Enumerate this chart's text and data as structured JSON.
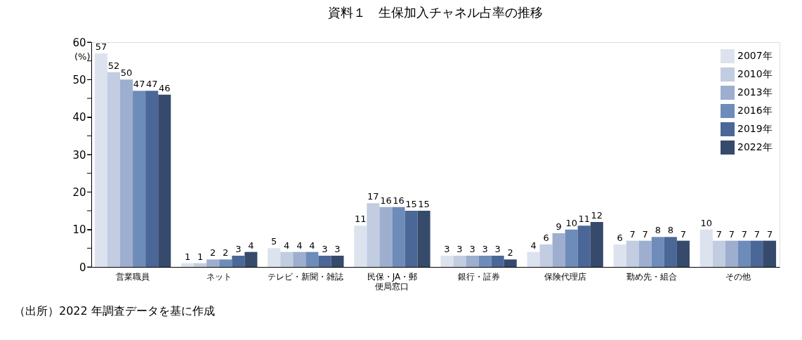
{
  "chart_data": {
    "type": "bar",
    "title": "資料１　生保加入チャネル占率の推移",
    "ylabel": "(%)",
    "categories": [
      "営業職員",
      "ネット",
      "テレビ・新聞・雑誌",
      "民保・JA・郵便局窓口",
      "銀行・証券",
      "保険代理店",
      "勤め先・組合",
      "その他"
    ],
    "series": [
      {
        "name": "2007年",
        "color": "#dce3ef",
        "values": [
          57,
          1,
          5,
          11,
          3,
          4,
          6,
          10
        ]
      },
      {
        "name": "2010年",
        "color": "#c2cde1",
        "values": [
          52,
          1,
          4,
          17,
          3,
          6,
          7,
          7
        ]
      },
      {
        "name": "2013年",
        "color": "#9daecf",
        "values": [
          50,
          2,
          4,
          16,
          3,
          9,
          7,
          7
        ]
      },
      {
        "name": "2016年",
        "color": "#6e8cb9",
        "values": [
          47,
          2,
          4,
          16,
          3,
          10,
          8,
          7
        ]
      },
      {
        "name": "2019年",
        "color": "#4a6797",
        "values": [
          47,
          3,
          3,
          15,
          3,
          11,
          8,
          7
        ]
      },
      {
        "name": "2022年",
        "color": "#364a6b",
        "values": [
          46,
          4,
          3,
          15,
          2,
          12,
          7,
          7
        ]
      }
    ],
    "ylim": [
      0,
      60
    ],
    "yticks": [
      0,
      {
        "value": 5,
        "label": null
      },
      10,
      {
        "value": 15,
        "label": null
      },
      20,
      {
        "value": 25,
        "label": null
      },
      30,
      {
        "value": 35,
        "label": null
      },
      40,
      {
        "value": 45,
        "label": null
      },
      50,
      {
        "value": 55,
        "label": null
      },
      60
    ],
    "data_labels": true,
    "grid": false,
    "legend": "top right",
    "annotations": [
      "（出所）2022 年調査データを基に作成"
    ]
  }
}
